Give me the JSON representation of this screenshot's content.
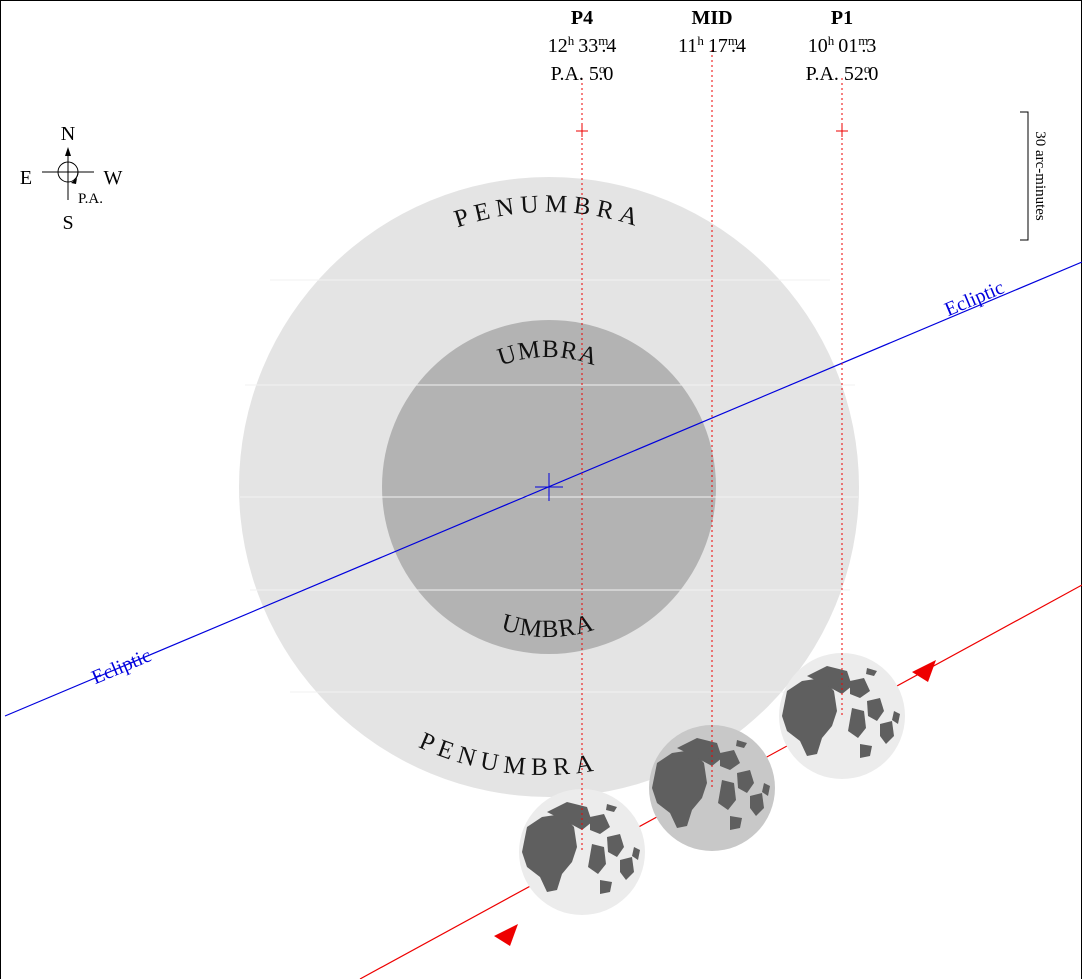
{
  "contacts": [
    {
      "label": "P4",
      "time": [
        "12",
        "h",
        "33",
        "m",
        ".4"
      ],
      "pa": [
        "P.A. 5",
        "o",
        ".0"
      ]
    },
    {
      "label": "MID",
      "time": [
        "11",
        "h",
        "17",
        "m",
        ".4"
      ]
    },
    {
      "label": "P1",
      "time": [
        "10",
        "h",
        "01",
        "m",
        ".3"
      ],
      "pa": [
        "P.A. 52",
        "o",
        ".0"
      ]
    }
  ],
  "compass": {
    "north": "N",
    "east": "E",
    "west": "W",
    "south": "S",
    "position_angle": "P.A."
  },
  "scale": "30 arc-minutes",
  "shadow": {
    "penumbra_top": "PENUMBRA",
    "umbra_top": "UMBRA",
    "umbra_bottom": "UMBRA",
    "penumbra_bottom": "PENUMBRA"
  },
  "ecliptic": [
    "Ecliptic",
    "Ecliptic"
  ]
}
